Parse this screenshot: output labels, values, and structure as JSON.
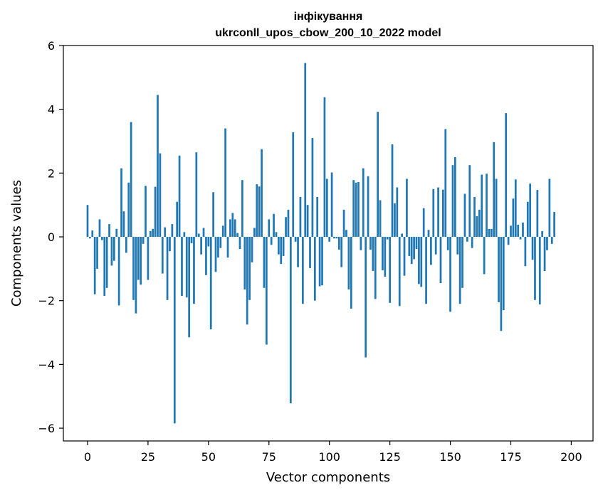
{
  "chart_data": {
    "type": "bar",
    "title": "інфікування",
    "subtitle": "ukrconll_upos_cbow_200_10_2022 model",
    "xlabel": "Vector components",
    "ylabel": "Components values",
    "xlim": [
      -10,
      209
    ],
    "ylim": [
      -6.4,
      6.0
    ],
    "xticks": [
      0,
      25,
      50,
      75,
      100,
      125,
      150,
      175,
      200
    ],
    "yticks": [
      -6,
      -4,
      -2,
      0,
      2,
      4,
      6
    ],
    "grid": false,
    "bar_color": "#1f77b4",
    "series": [
      {
        "values": [
          1.0,
          -0.05,
          0.2,
          -1.8,
          -1.0,
          0.55,
          -0.1,
          -1.85,
          -1.6,
          0.4,
          -0.9,
          -0.75,
          0.25,
          -2.15,
          2.15,
          0.8,
          -0.5,
          1.7,
          3.6,
          -1.98,
          -2.4,
          -1.35,
          -1.5,
          -0.22,
          1.6,
          -1.35,
          0.18,
          0.25,
          1.57,
          4.45,
          2.62,
          -1.15,
          0.3,
          -1.98,
          -0.45,
          0.4,
          -5.85,
          1.1,
          2.55,
          -1.85,
          0.15,
          -1.9,
          -3.15,
          -0.2,
          -2.1,
          2.65,
          0.1,
          -0.55,
          0.28,
          -1.2,
          -0.3,
          -2.9,
          1.4,
          -1.1,
          -0.65,
          -0.35,
          0.35,
          3.4,
          -0.65,
          0.55,
          0.75,
          0.55,
          0.12,
          -0.38,
          1.78,
          -1.65,
          -2.75,
          -1.98,
          -0.8,
          0.28,
          1.65,
          1.58,
          2.75,
          -1.6,
          -3.38,
          0.55,
          -0.25,
          0.72,
          0.15,
          -0.55,
          -0.85,
          -0.6,
          0.62,
          0.85,
          -5.22,
          3.28,
          -0.15,
          -0.95,
          1.25,
          -2.1,
          5.45,
          1.0,
          -0.98,
          3.1,
          -2.0,
          1.25,
          -1.55,
          -1.52,
          4.38,
          1.82,
          -0.15,
          2.02,
          -0.05,
          -0.05,
          -0.4,
          -0.95,
          0.85,
          0.22,
          -1.65,
          -2.25,
          1.78,
          1.7,
          1.72,
          -0.42,
          2.15,
          -3.78,
          1.9,
          -0.4,
          -1.07,
          -1.95,
          3.92,
          1.15,
          -1.05,
          -1.25,
          -0.08,
          -2.07,
          2.9,
          1.05,
          1.55,
          -2.17,
          0.1,
          -1.22,
          1.82,
          -0.6,
          -0.85,
          -0.7,
          -0.38,
          -1.48,
          -1.57,
          0.9,
          -2.1,
          0.22,
          -0.88,
          1.5,
          -0.55,
          1.55,
          -1.45,
          1.48,
          3.38,
          -0.42,
          -2.35,
          2.25,
          2.5,
          -0.55,
          -2.1,
          -1.6,
          1.35,
          -0.15,
          2.25,
          -0.35,
          1.25,
          0.65,
          0.85,
          1.95,
          -1.17,
          1.98,
          0.25,
          0.25,
          2.97,
          1.82,
          -2.05,
          -2.95,
          -2.3,
          3.88,
          -0.25,
          0.35,
          1.2,
          1.8,
          0.38,
          -0.08,
          0.45,
          -0.92,
          1.1,
          1.67,
          -0.72,
          -1.98,
          1.47,
          -2.12,
          0.18,
          -1.07,
          -0.42,
          1.82,
          -0.22,
          0.78
        ]
      }
    ]
  }
}
